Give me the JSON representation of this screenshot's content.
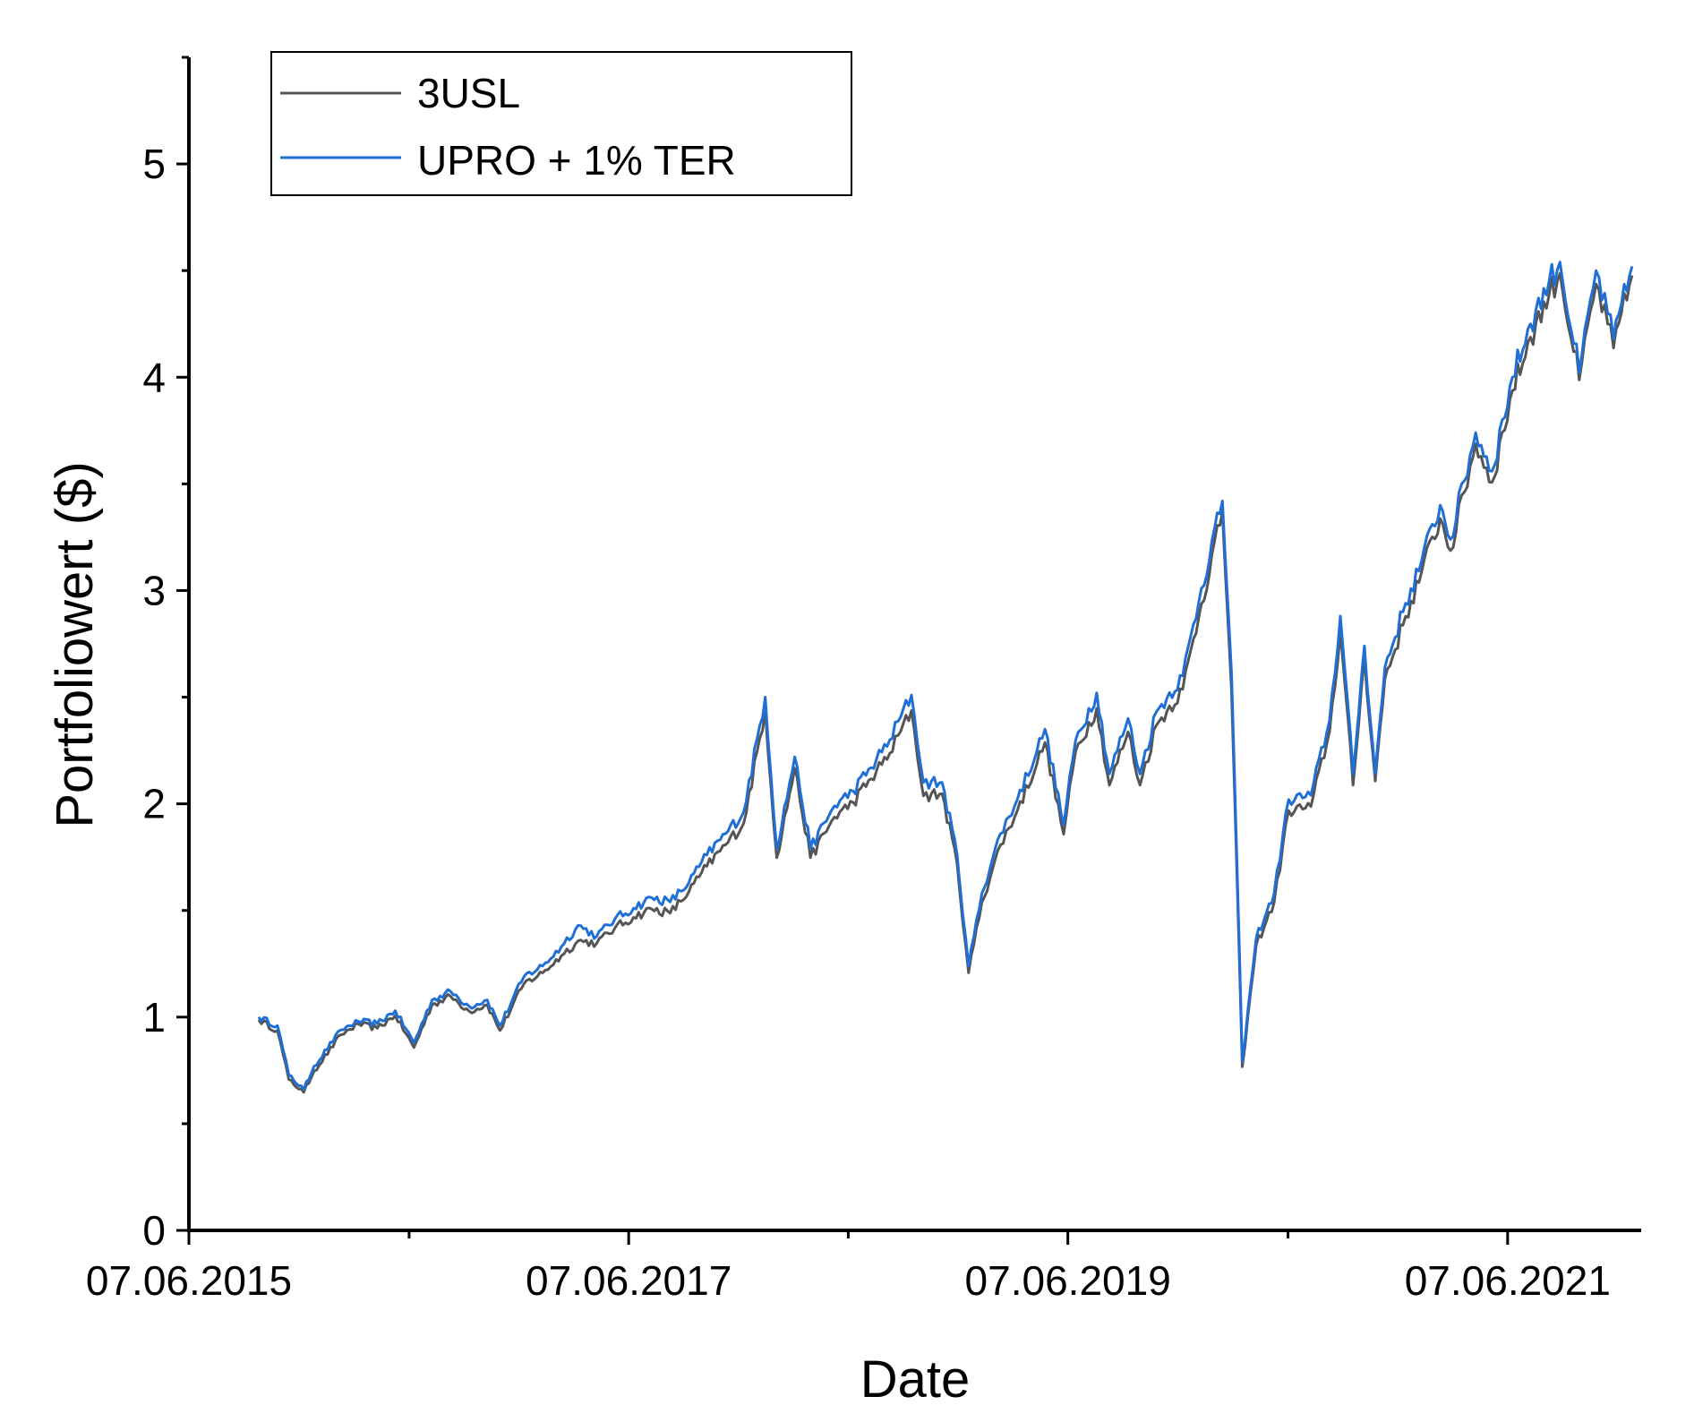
{
  "chart_data": {
    "type": "line",
    "title": "",
    "xlabel": "Date",
    "ylabel": "Portfoliowert ($)",
    "x_ticks": [
      {
        "date": "2015-06-07",
        "label": "07.06.2015"
      },
      {
        "date": "2017-06-07",
        "label": "07.06.2017"
      },
      {
        "date": "2019-06-07",
        "label": "07.06.2019"
      },
      {
        "date": "2021-06-07",
        "label": "07.06.2021"
      }
    ],
    "x_minor_ticks": [
      "2016-06-07",
      "2018-06-07",
      "2020-06-07"
    ],
    "xlim": [
      "2015-06-07",
      "2022-01-15"
    ],
    "ylim": [
      0,
      5.5
    ],
    "y_ticks": [
      0,
      1,
      2,
      3,
      4,
      5
    ],
    "y_minor_ticks": [
      0.5,
      1.5,
      2.5,
      3.5,
      4.5,
      5.5
    ],
    "legend_position": "top-left",
    "grid": false,
    "series": [
      {
        "name": "3USL",
        "color": "#555555",
        "offset_hint": "slightly below UPRO line",
        "points": [
          [
            "2015-10-01",
            1.0
          ],
          [
            "2015-11-01",
            0.95
          ],
          [
            "2015-11-20",
            0.72
          ],
          [
            "2015-12-15",
            0.66
          ],
          [
            "2016-01-01",
            0.76
          ],
          [
            "2016-02-15",
            0.93
          ],
          [
            "2016-03-15",
            0.98
          ],
          [
            "2016-04-15",
            0.96
          ],
          [
            "2016-05-15",
            1.02
          ],
          [
            "2016-06-15",
            0.87
          ],
          [
            "2016-07-15",
            1.07
          ],
          [
            "2016-08-15",
            1.11
          ],
          [
            "2016-09-15",
            1.04
          ],
          [
            "2016-10-15",
            1.07
          ],
          [
            "2016-11-05",
            0.95
          ],
          [
            "2016-12-15",
            1.17
          ],
          [
            "2017-01-15",
            1.22
          ],
          [
            "2017-02-15",
            1.3
          ],
          [
            "2017-03-15",
            1.37
          ],
          [
            "2017-04-15",
            1.36
          ],
          [
            "2017-05-15",
            1.43
          ],
          [
            "2017-06-15",
            1.48
          ],
          [
            "2017-07-15",
            1.52
          ],
          [
            "2017-08-15",
            1.5
          ],
          [
            "2017-09-15",
            1.6
          ],
          [
            "2017-10-15",
            1.72
          ],
          [
            "2017-11-15",
            1.82
          ],
          [
            "2017-12-15",
            1.92
          ],
          [
            "2018-01-20",
            2.45
          ],
          [
            "2018-02-08",
            1.76
          ],
          [
            "2018-03-10",
            2.18
          ],
          [
            "2018-04-05",
            1.76
          ],
          [
            "2018-05-15",
            1.95
          ],
          [
            "2018-06-15",
            2.02
          ],
          [
            "2018-07-15",
            2.13
          ],
          [
            "2018-08-15",
            2.25
          ],
          [
            "2018-09-20",
            2.45
          ],
          [
            "2018-10-10",
            2.05
          ],
          [
            "2018-11-10",
            2.06
          ],
          [
            "2018-12-05",
            1.73
          ],
          [
            "2018-12-24",
            1.22
          ],
          [
            "2019-01-15",
            1.55
          ],
          [
            "2019-02-15",
            1.82
          ],
          [
            "2019-03-15",
            1.98
          ],
          [
            "2019-04-30",
            2.3
          ],
          [
            "2019-05-31",
            1.87
          ],
          [
            "2019-06-20",
            2.26
          ],
          [
            "2019-07-25",
            2.46
          ],
          [
            "2019-08-15",
            2.1
          ],
          [
            "2019-09-15",
            2.35
          ],
          [
            "2019-10-05",
            2.1
          ],
          [
            "2019-11-01",
            2.38
          ],
          [
            "2019-12-15",
            2.55
          ],
          [
            "2020-01-15",
            2.95
          ],
          [
            "2020-02-19",
            3.38
          ],
          [
            "2020-03-05",
            2.55
          ],
          [
            "2020-03-23",
            0.78
          ],
          [
            "2020-04-15",
            1.35
          ],
          [
            "2020-05-15",
            1.55
          ],
          [
            "2020-06-08",
            1.98
          ],
          [
            "2020-07-15",
            2.0
          ],
          [
            "2020-08-15",
            2.35
          ],
          [
            "2020-09-02",
            2.82
          ],
          [
            "2020-09-23",
            2.1
          ],
          [
            "2020-10-12",
            2.7
          ],
          [
            "2020-10-30",
            2.12
          ],
          [
            "2020-11-15",
            2.6
          ],
          [
            "2020-12-15",
            2.85
          ],
          [
            "2021-01-15",
            3.1
          ],
          [
            "2021-02-15",
            3.35
          ],
          [
            "2021-03-04",
            3.2
          ],
          [
            "2021-04-15",
            3.7
          ],
          [
            "2021-05-12",
            3.52
          ],
          [
            "2021-06-15",
            3.95
          ],
          [
            "2021-07-15",
            4.2
          ],
          [
            "2021-08-15",
            4.4
          ],
          [
            "2021-09-02",
            4.5
          ],
          [
            "2021-10-04",
            4.0
          ],
          [
            "2021-11-01",
            4.45
          ],
          [
            "2021-11-30",
            4.15
          ],
          [
            "2021-12-31",
            4.49
          ]
        ]
      },
      {
        "name": "UPRO + 1% TER",
        "color": "#1f6fd6",
        "points": [
          [
            "2015-10-01",
            1.0
          ],
          [
            "2015-11-01",
            0.96
          ],
          [
            "2015-11-20",
            0.73
          ],
          [
            "2015-12-15",
            0.66
          ],
          [
            "2016-01-01",
            0.77
          ],
          [
            "2016-02-15",
            0.94
          ],
          [
            "2016-03-15",
            0.98
          ],
          [
            "2016-04-15",
            0.97
          ],
          [
            "2016-05-15",
            1.03
          ],
          [
            "2016-06-15",
            0.88
          ],
          [
            "2016-07-15",
            1.08
          ],
          [
            "2016-08-15",
            1.12
          ],
          [
            "2016-09-15",
            1.05
          ],
          [
            "2016-10-15",
            1.08
          ],
          [
            "2016-11-05",
            0.96
          ],
          [
            "2016-12-15",
            1.19
          ],
          [
            "2017-01-15",
            1.24
          ],
          [
            "2017-02-15",
            1.33
          ],
          [
            "2017-03-15",
            1.43
          ],
          [
            "2017-04-15",
            1.38
          ],
          [
            "2017-05-15",
            1.46
          ],
          [
            "2017-06-15",
            1.51
          ],
          [
            "2017-07-15",
            1.56
          ],
          [
            "2017-08-15",
            1.54
          ],
          [
            "2017-09-15",
            1.63
          ],
          [
            "2017-10-15",
            1.76
          ],
          [
            "2017-11-15",
            1.86
          ],
          [
            "2017-12-15",
            1.96
          ],
          [
            "2018-01-20",
            2.5
          ],
          [
            "2018-02-08",
            1.79
          ],
          [
            "2018-03-10",
            2.22
          ],
          [
            "2018-04-05",
            1.79
          ],
          [
            "2018-05-15",
            1.99
          ],
          [
            "2018-06-15",
            2.06
          ],
          [
            "2018-07-15",
            2.17
          ],
          [
            "2018-08-15",
            2.3
          ],
          [
            "2018-09-20",
            2.51
          ],
          [
            "2018-10-10",
            2.1
          ],
          [
            "2018-11-10",
            2.1
          ],
          [
            "2018-12-05",
            1.76
          ],
          [
            "2018-12-24",
            1.24
          ],
          [
            "2019-01-15",
            1.58
          ],
          [
            "2019-02-15",
            1.86
          ],
          [
            "2019-03-15",
            2.02
          ],
          [
            "2019-04-30",
            2.35
          ],
          [
            "2019-05-31",
            1.9
          ],
          [
            "2019-06-20",
            2.3
          ],
          [
            "2019-07-25",
            2.52
          ],
          [
            "2019-08-15",
            2.14
          ],
          [
            "2019-09-15",
            2.4
          ],
          [
            "2019-10-05",
            2.14
          ],
          [
            "2019-11-01",
            2.43
          ],
          [
            "2019-12-15",
            2.6
          ],
          [
            "2020-01-15",
            3.01
          ],
          [
            "2020-02-19",
            3.42
          ],
          [
            "2020-03-05",
            2.62
          ],
          [
            "2020-03-23",
            0.79
          ],
          [
            "2020-04-15",
            1.37
          ],
          [
            "2020-05-15",
            1.58
          ],
          [
            "2020-06-08",
            2.02
          ],
          [
            "2020-07-15",
            2.04
          ],
          [
            "2020-08-15",
            2.39
          ],
          [
            "2020-09-02",
            2.88
          ],
          [
            "2020-09-23",
            2.14
          ],
          [
            "2020-10-12",
            2.74
          ],
          [
            "2020-10-30",
            2.14
          ],
          [
            "2020-11-15",
            2.64
          ],
          [
            "2020-12-15",
            2.9
          ],
          [
            "2021-01-15",
            3.14
          ],
          [
            "2021-02-15",
            3.4
          ],
          [
            "2021-03-04",
            3.24
          ],
          [
            "2021-04-15",
            3.74
          ],
          [
            "2021-05-12",
            3.56
          ],
          [
            "2021-06-15",
            4.0
          ],
          [
            "2021-07-15",
            4.25
          ],
          [
            "2021-08-15",
            4.45
          ],
          [
            "2021-09-02",
            4.54
          ],
          [
            "2021-10-04",
            4.02
          ],
          [
            "2021-11-01",
            4.5
          ],
          [
            "2021-11-30",
            4.18
          ],
          [
            "2021-12-31",
            4.52
          ]
        ]
      }
    ]
  }
}
